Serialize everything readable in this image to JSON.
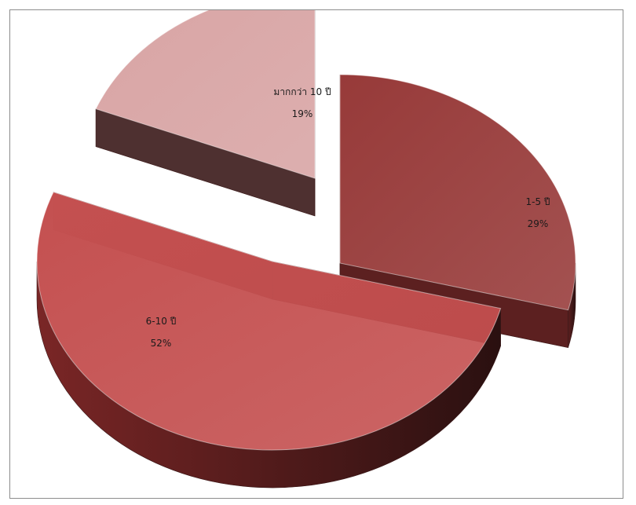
{
  "chart_data": {
    "type": "pie",
    "style": "3d-exploded",
    "title": "",
    "slices": [
      {
        "label": "1-5 ปี",
        "value": 29,
        "value_label": "29%",
        "color": "#973a39",
        "side_color": "#5c2020"
      },
      {
        "label": "6-10 ปี",
        "value": 52,
        "value_label": "52%",
        "color": "#c45050",
        "side_color": "#7a2626"
      },
      {
        "label": "มากกว่า 10 ปี",
        "value": 19,
        "value_label": "19%",
        "color": "#d8a4a4",
        "side_color": "#4e3030"
      }
    ],
    "legend": "none"
  }
}
